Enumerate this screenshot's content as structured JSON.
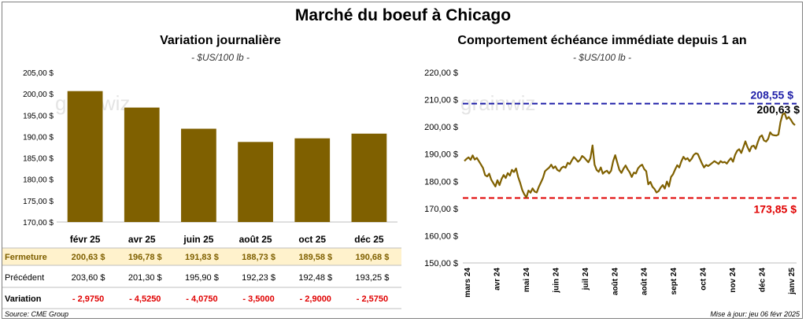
{
  "title": "Marché du boeuf à Chicago",
  "left": {
    "title": "Variation journalière",
    "unit": "- $US/100 lb -",
    "watermark": "grainwiz"
  },
  "right": {
    "title": "Comportement échéance immédiate depuis 1 an",
    "unit": "- $US/100 lb -",
    "watermark": "grainwiz",
    "max_label": "208,55 $",
    "last_label": "200,63 $",
    "min_label": "173,85 $"
  },
  "table": {
    "row_labels": [
      "Fermeture",
      "Précédent",
      "Variation"
    ],
    "fermeture": [
      "200,63  $",
      "196,78  $",
      "191,83  $",
      "188,73  $",
      "189,58  $",
      "190,68  $"
    ],
    "precedent": [
      "203,60  $",
      "201,30  $",
      "195,90  $",
      "192,23  $",
      "192,48  $",
      "193,25  $"
    ],
    "variation": [
      "- 2,9750",
      "- 4,5250",
      "- 4,0750",
      "- 3,5000",
      "- 2,9000",
      "- 2,5750"
    ]
  },
  "footer": {
    "source": "Source: CME Group",
    "update": "Mise à jour: jeu 06 févr 2025"
  },
  "colors": {
    "bar": "#7f6000",
    "line": "#7f6000",
    "max_line": "#1f1fa8",
    "min_line": "#e00000",
    "highlight_row": "#fff2cc",
    "negative": "#e00000"
  },
  "chart_data": [
    {
      "type": "bar",
      "title": "Variation journalière",
      "categories": [
        "févr 25",
        "avr 25",
        "juin 25",
        "août 25",
        "oct 25",
        "déc 25"
      ],
      "values": [
        200.63,
        196.78,
        191.83,
        188.73,
        189.58,
        190.68
      ],
      "ylim": [
        170,
        205
      ],
      "yticks": [
        "170,00 $",
        "175,00 $",
        "180,00 $",
        "185,00 $",
        "190,00 $",
        "195,00 $",
        "200,00 $",
        "205,00 $"
      ],
      "ytick_values": [
        170,
        175,
        180,
        185,
        190,
        195,
        200,
        205
      ],
      "grid": false
    },
    {
      "type": "line",
      "title": "Comportement échéance immédiate depuis 1 an",
      "x_labels": [
        "mars 24",
        "avr 24",
        "mai 24",
        "juin 24",
        "juil 24",
        "août 24",
        "août 24",
        "sept 24",
        "oct 24",
        "nov 24",
        "déc 24",
        "janv 25"
      ],
      "ylim": [
        150,
        220
      ],
      "yticks": [
        "150,00 $",
        "160,00 $",
        "170,00 $",
        "180,00 $",
        "190,00 $",
        "200,00 $",
        "210,00 $",
        "220,00 $"
      ],
      "ytick_values": [
        150,
        160,
        170,
        180,
        190,
        200,
        210,
        220
      ],
      "reference_lines": [
        {
          "name": "max",
          "value": 208.55
        },
        {
          "name": "min",
          "value": 173.85
        }
      ],
      "last_value": 200.63,
      "grid": false,
      "series": [
        {
          "values": [
            187.5,
            188.2,
            188.8,
            187.9,
            189.5,
            188.0,
            188.6,
            187.4,
            186.2,
            184.9,
            182.3,
            181.8,
            182.8,
            180.6,
            179.3,
            178.1,
            180.4,
            178.6,
            180.9,
            182.3,
            181.2,
            183.0,
            182.1,
            184.2,
            183.4,
            184.7,
            181.6,
            179.4,
            176.8,
            175.2,
            174.1,
            176.6,
            175.8,
            177.4,
            176.2,
            175.9,
            177.9,
            179.5,
            181.2,
            183.7,
            184.4,
            185.0,
            186.1,
            184.8,
            185.5,
            184.2,
            183.7,
            184.9,
            185.4,
            185.0,
            186.8,
            186.3,
            187.7,
            188.9,
            188.1,
            187.2,
            187.9,
            189.3,
            188.7,
            187.8,
            187.0,
            188.5,
            193.2,
            186.1,
            184.2,
            183.5,
            185.1,
            182.8,
            183.5,
            183.9,
            182.9,
            183.9,
            187.4,
            189.6,
            186.8,
            184.2,
            183.1,
            184.6,
            185.8,
            184.4,
            183.3,
            181.6,
            183.2,
            182.9,
            184.7,
            185.6,
            186.1,
            184.5,
            183.7,
            178.9,
            179.8,
            178.0,
            177.2,
            175.9,
            176.4,
            177.7,
            178.6,
            177.3,
            179.9,
            178.1,
            181.6,
            182.6,
            184.4,
            185.9,
            185.1,
            187.3,
            189.0,
            188.0,
            188.5,
            187.4,
            188.3,
            189.7,
            190.3,
            190.0,
            188.2,
            186.5,
            185.1,
            186.0,
            185.6,
            186.2,
            186.8,
            187.4,
            186.9,
            186.4,
            187.4,
            186.9,
            187.1,
            186.5,
            187.6,
            188.5,
            187.2,
            189.7,
            191.2,
            191.8,
            190.4,
            192.5,
            194.7,
            192.6,
            191.0,
            192.8,
            193.1,
            191.9,
            194.4,
            196.3,
            196.9,
            195.0,
            194.6,
            195.6,
            198.0,
            197.1,
            196.9,
            196.8,
            197.2,
            201.8,
            204.6,
            205.0,
            202.9,
            203.6,
            202.6,
            201.3,
            200.63
          ]
        }
      ]
    }
  ]
}
